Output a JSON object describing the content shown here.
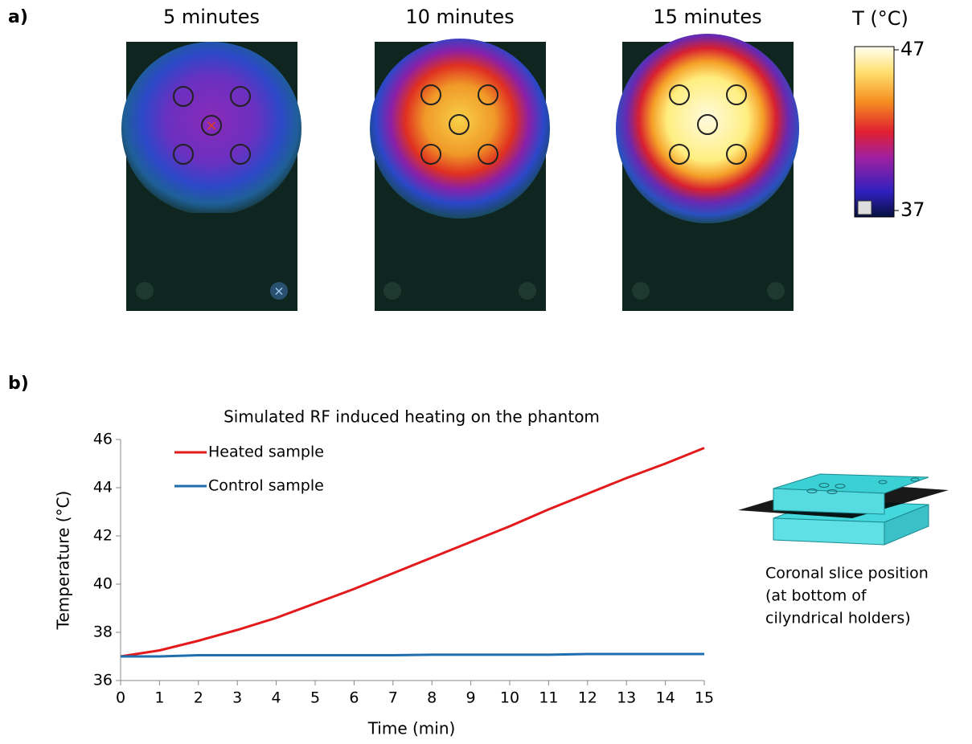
{
  "panels": {
    "a_label": "a)",
    "b_label": "b)"
  },
  "heatmaps": [
    {
      "title": "5 minutes"
    },
    {
      "title": "10 minutes"
    },
    {
      "title": "15 minutes"
    }
  ],
  "colorbar": {
    "label": "T (°C)",
    "ticks": [
      37,
      47
    ]
  },
  "chart_data": {
    "type": "line",
    "title": "Simulated RF induced heating on the phantom",
    "x_label": "Time (min)",
    "y_label": "Temperature (°C)",
    "x": [
      0,
      1,
      2,
      3,
      4,
      5,
      6,
      7,
      8,
      9,
      10,
      11,
      12,
      13,
      14,
      15
    ],
    "xlim": [
      0,
      15
    ],
    "xticks": [
      0,
      1,
      2,
      3,
      4,
      5,
      6,
      7,
      8,
      9,
      10,
      11,
      12,
      13,
      14,
      15
    ],
    "ylim": [
      36,
      46
    ],
    "yticks": [
      36,
      38,
      40,
      42,
      44,
      46
    ],
    "legend": "upper left",
    "series": [
      {
        "name": "Heated sample",
        "color": "#e31a1c",
        "values": [
          37.0,
          37.25,
          37.65,
          38.1,
          38.6,
          39.2,
          39.8,
          40.45,
          41.1,
          41.75,
          42.4,
          43.1,
          43.75,
          44.4,
          45.0,
          45.65
        ]
      },
      {
        "name": "Control sample",
        "color": "#1f6fb0",
        "values": [
          37.0,
          37.0,
          37.05,
          37.05,
          37.05,
          37.05,
          37.05,
          37.05,
          37.07,
          37.07,
          37.07,
          37.07,
          37.1,
          37.1,
          37.1,
          37.1
        ]
      }
    ]
  },
  "inset": {
    "caption": [
      "Coronal slice position",
      "(at bottom of",
      "cilyndrical holders)"
    ]
  }
}
